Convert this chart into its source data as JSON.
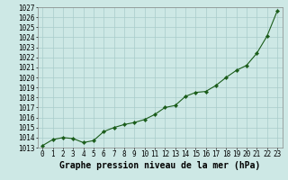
{
  "x": [
    0,
    1,
    2,
    3,
    4,
    5,
    6,
    7,
    8,
    9,
    10,
    11,
    12,
    13,
    14,
    15,
    16,
    17,
    18,
    19,
    20,
    21,
    22,
    23
  ],
  "y": [
    1013.2,
    1013.8,
    1014.0,
    1013.9,
    1013.5,
    1013.7,
    1014.6,
    1015.0,
    1015.3,
    1015.5,
    1015.8,
    1016.3,
    1017.0,
    1017.2,
    1018.1,
    1018.5,
    1018.6,
    1019.2,
    1020.0,
    1020.7,
    1021.2,
    1022.4,
    1024.1,
    1026.6
  ],
  "ylim": [
    1013,
    1027
  ],
  "xlim": [
    -0.5,
    23.5
  ],
  "yticks": [
    1013,
    1014,
    1015,
    1016,
    1017,
    1018,
    1019,
    1020,
    1021,
    1022,
    1023,
    1024,
    1025,
    1026,
    1027
  ],
  "xticks": [
    0,
    1,
    2,
    3,
    4,
    5,
    6,
    7,
    8,
    9,
    10,
    11,
    12,
    13,
    14,
    15,
    16,
    17,
    18,
    19,
    20,
    21,
    22,
    23
  ],
  "line_color": "#1a5c1a",
  "marker": "D",
  "marker_size": 2.2,
  "bg_color": "#cde8e5",
  "grid_color": "#a8ccca",
  "xlabel": "Graphe pression niveau de la mer (hPa)",
  "xlabel_fontsize": 7.0,
  "tick_fontsize": 5.5
}
